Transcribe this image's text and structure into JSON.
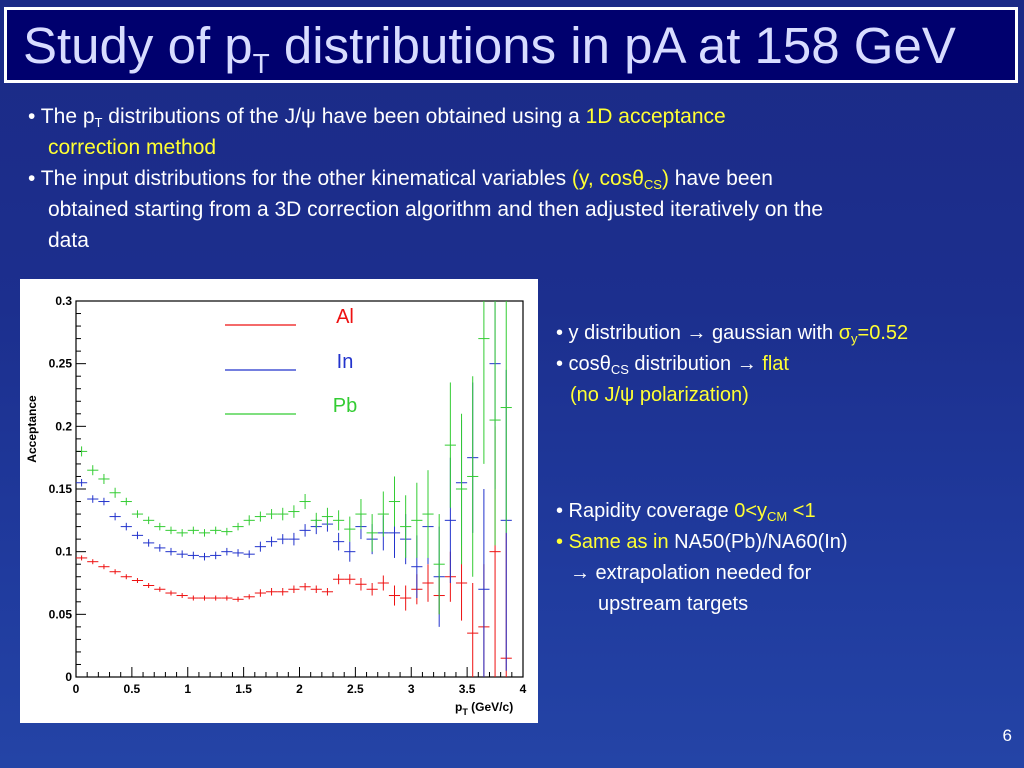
{
  "title": {
    "prefix": "Study of p",
    "sub": "T",
    "suffix": " distributions in pA at 158 GeV"
  },
  "top_bullets": {
    "b1_a": "• The p",
    "b1_sub": "T",
    "b1_b": " distributions of the J/",
    "b1_psi": "ψ",
    "b1_c": " have been obtained using a ",
    "b1_hl1": "1D acceptance",
    "b1_hl2": "correction method",
    "b2_a": "• The input distributions for the other kinematical variables ",
    "b2_hl_a": "(y, cos",
    "b2_hl_theta": "θ",
    "b2_hl_sub": "CS",
    "b2_hl_b": ")",
    "b2_b": " have been",
    "b2_line2": "obtained starting from a 3D correction algorithm and then adjusted iteratively on the",
    "b2_line3": "data"
  },
  "right_block_1": {
    "l1_a": "• y distribution ",
    "l1_arrow": "→",
    "l1_b": " gaussian with ",
    "l1_sigma": "σ",
    "l1_sub": "y",
    "l1_val": "=0.52",
    "l2_a": "• cos",
    "l2_theta": "θ",
    "l2_sub": "CS",
    "l2_b": " distribution ",
    "l2_arrow": "→",
    "l2_hl": " flat",
    "l3_a": "(no J/",
    "l3_psi": "ψ",
    "l3_b": " polarization)"
  },
  "right_block_2": {
    "l1_a": "• Rapidity coverage ",
    "l1_hl_a": "0<y",
    "l1_hl_sub": "CM",
    "l1_hl_b": " <1",
    "l2_bullet": "• ",
    "l2_hl": "Same as in",
    "l2_b": " NA50(Pb)/NA60(In)",
    "l3_arrow": "→",
    "l3_b": " extrapolation needed for",
    "l4": "upstream targets"
  },
  "page_number": "6",
  "colors": {
    "al": "#ee1111",
    "in": "#2233cc",
    "pb": "#33cc33",
    "highlight": "#ffff33"
  },
  "chart_data": {
    "type": "scatter",
    "title": "",
    "xlabel_main": "p",
    "xlabel_sub": "T",
    "xlabel_unit": " (GeV/c)",
    "ylabel": "Acceptance",
    "xlim": [
      0,
      4
    ],
    "ylim": [
      0,
      0.3
    ],
    "x_ticks": [
      "0",
      "0.5",
      "1",
      "1.5",
      "2",
      "2.5",
      "3",
      "3.5",
      "4"
    ],
    "y_ticks": [
      "0",
      "0.05",
      "0.1",
      "0.15",
      "0.2",
      "0.25",
      "0.3"
    ],
    "x_tick_values": [
      0,
      0.5,
      1,
      1.5,
      2,
      2.5,
      3,
      3.5,
      4
    ],
    "y_tick_values": [
      0,
      0.05,
      0.1,
      0.15,
      0.2,
      0.25,
      0.3
    ],
    "legend": [
      "Al",
      "In",
      "Pb"
    ],
    "series": [
      {
        "name": "Al",
        "color": "#ee1111",
        "x": [
          0.05,
          0.15,
          0.25,
          0.35,
          0.45,
          0.55,
          0.65,
          0.75,
          0.85,
          0.95,
          1.05,
          1.15,
          1.25,
          1.35,
          1.45,
          1.55,
          1.65,
          1.75,
          1.85,
          1.95,
          2.05,
          2.15,
          2.25,
          2.35,
          2.45,
          2.55,
          2.65,
          2.75,
          2.85,
          2.95,
          3.05,
          3.15,
          3.25,
          3.35,
          3.45,
          3.55,
          3.65,
          3.75,
          3.85
        ],
        "y": [
          0.095,
          0.092,
          0.088,
          0.084,
          0.08,
          0.077,
          0.073,
          0.07,
          0.067,
          0.065,
          0.063,
          0.063,
          0.063,
          0.063,
          0.062,
          0.064,
          0.067,
          0.068,
          0.068,
          0.07,
          0.072,
          0.07,
          0.068,
          0.078,
          0.078,
          0.074,
          0.07,
          0.075,
          0.065,
          0.063,
          0.07,
          0.075,
          0.065,
          0.08,
          0.075,
          0.035,
          0.04,
          0.1,
          0.015
        ],
        "err": [
          0.002,
          0.002,
          0.002,
          0.002,
          0.002,
          0.002,
          0.002,
          0.002,
          0.002,
          0.002,
          0.002,
          0.002,
          0.002,
          0.002,
          0.002,
          0.002,
          0.003,
          0.003,
          0.003,
          0.003,
          0.003,
          0.003,
          0.003,
          0.004,
          0.004,
          0.005,
          0.005,
          0.006,
          0.008,
          0.01,
          0.012,
          0.015,
          0.015,
          0.02,
          0.03,
          0.04,
          0.05,
          0.1,
          0.1
        ]
      },
      {
        "name": "In",
        "color": "#2233cc",
        "x": [
          0.05,
          0.15,
          0.25,
          0.35,
          0.45,
          0.55,
          0.65,
          0.75,
          0.85,
          0.95,
          1.05,
          1.15,
          1.25,
          1.35,
          1.45,
          1.55,
          1.65,
          1.75,
          1.85,
          1.95,
          2.05,
          2.15,
          2.25,
          2.35,
          2.45,
          2.55,
          2.65,
          2.75,
          2.85,
          2.95,
          3.05,
          3.15,
          3.25,
          3.35,
          3.45,
          3.55,
          3.65,
          3.75,
          3.85
        ],
        "y": [
          0.155,
          0.142,
          0.14,
          0.128,
          0.12,
          0.113,
          0.107,
          0.103,
          0.1,
          0.098,
          0.097,
          0.096,
          0.097,
          0.1,
          0.099,
          0.098,
          0.104,
          0.108,
          0.11,
          0.11,
          0.117,
          0.12,
          0.122,
          0.108,
          0.1,
          0.12,
          0.11,
          0.115,
          0.115,
          0.11,
          0.088,
          0.12,
          0.08,
          0.125,
          0.155,
          0.175,
          0.07,
          0.25,
          0.125
        ],
        "err": [
          0.003,
          0.003,
          0.003,
          0.003,
          0.003,
          0.003,
          0.003,
          0.003,
          0.003,
          0.003,
          0.003,
          0.003,
          0.003,
          0.003,
          0.003,
          0.003,
          0.004,
          0.004,
          0.004,
          0.005,
          0.005,
          0.006,
          0.006,
          0.007,
          0.008,
          0.01,
          0.012,
          0.014,
          0.02,
          0.02,
          0.025,
          0.03,
          0.04,
          0.05,
          0.05,
          0.06,
          0.08,
          0.1,
          0.12
        ]
      },
      {
        "name": "Pb",
        "color": "#33cc33",
        "x": [
          0.05,
          0.15,
          0.25,
          0.35,
          0.45,
          0.55,
          0.65,
          0.75,
          0.85,
          0.95,
          1.05,
          1.15,
          1.25,
          1.35,
          1.45,
          1.55,
          1.65,
          1.75,
          1.85,
          1.95,
          2.05,
          2.15,
          2.25,
          2.35,
          2.45,
          2.55,
          2.65,
          2.75,
          2.85,
          2.95,
          3.05,
          3.15,
          3.25,
          3.35,
          3.45,
          3.55,
          3.65,
          3.75,
          3.85
        ],
        "y": [
          0.18,
          0.165,
          0.158,
          0.147,
          0.14,
          0.13,
          0.125,
          0.12,
          0.117,
          0.115,
          0.117,
          0.115,
          0.117,
          0.116,
          0.12,
          0.125,
          0.128,
          0.13,
          0.13,
          0.132,
          0.14,
          0.125,
          0.128,
          0.125,
          0.118,
          0.13,
          0.115,
          0.13,
          0.14,
          0.12,
          0.125,
          0.13,
          0.09,
          0.185,
          0.15,
          0.16,
          0.27,
          0.205,
          0.215
        ],
        "err": [
          0.004,
          0.004,
          0.004,
          0.004,
          0.003,
          0.003,
          0.003,
          0.003,
          0.003,
          0.003,
          0.003,
          0.003,
          0.003,
          0.003,
          0.003,
          0.004,
          0.004,
          0.004,
          0.005,
          0.005,
          0.006,
          0.006,
          0.007,
          0.008,
          0.01,
          0.012,
          0.015,
          0.018,
          0.02,
          0.025,
          0.03,
          0.035,
          0.04,
          0.05,
          0.06,
          0.08,
          0.1,
          0.1,
          0.1
        ]
      }
    ]
  }
}
